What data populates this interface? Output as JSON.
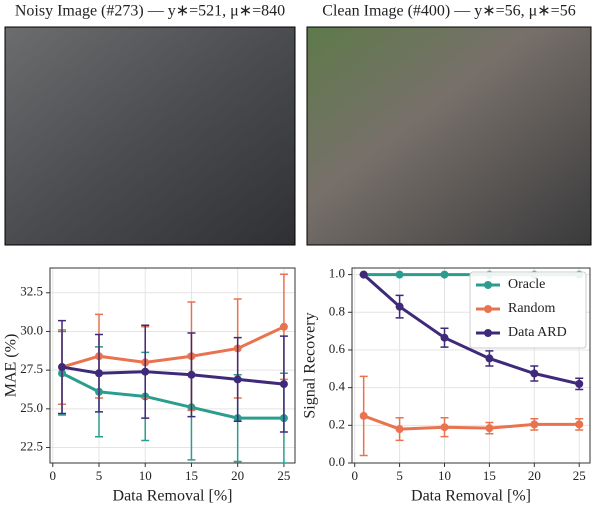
{
  "panels": [
    {
      "title": "Noisy Image (#273) — y∗=521, μ∗=840"
    },
    {
      "title": "Clean Image (#400) — y∗=56, μ∗=56"
    }
  ],
  "chart_data": [
    {
      "type": "line",
      "ylabel": "MAE (%)",
      "xlabel": "Data Removal [%]",
      "x": [
        1,
        5,
        10,
        15,
        20,
        25
      ],
      "xlim": [
        -0.3,
        26.2
      ],
      "xticks": [
        0,
        5,
        10,
        15,
        20,
        25
      ],
      "ylim": [
        21.5,
        34.1
      ],
      "yticks": [
        {
          "value": 22.5,
          "label": "22.5"
        },
        {
          "value": 25,
          "label": "25.0"
        },
        {
          "value": 27.5,
          "label": "27.5"
        },
        {
          "value": 30,
          "label": "30.0"
        },
        {
          "value": 32.5,
          "label": "32.5"
        }
      ],
      "grid": true,
      "series": [
        {
          "color": "#2a9d8f",
          "values": [
            27.3,
            26.1,
            25.8,
            25.1,
            24.4,
            24.4
          ],
          "errors": [
            2.7,
            2.9,
            2.85,
            3.4,
            2.8,
            2.9
          ]
        },
        {
          "color": "#e9734f",
          "values": [
            27.7,
            28.4,
            28.0,
            28.4,
            28.9,
            30.3
          ],
          "errors": [
            2.4,
            2.7,
            2.3,
            3.5,
            3.2,
            3.4
          ]
        },
        {
          "color": "#3f2a7a",
          "values": [
            27.7,
            27.3,
            27.4,
            27.2,
            26.9,
            26.6
          ],
          "errors": [
            3.0,
            2.5,
            3.0,
            2.7,
            2.7,
            3.1
          ]
        }
      ]
    },
    {
      "type": "line",
      "ylabel": "Signal Recovery",
      "xlabel": "Data Removal [%]",
      "x": [
        1,
        5,
        10,
        15,
        20,
        25
      ],
      "xlim": [
        -0.3,
        26.2
      ],
      "xticks": [
        0,
        5,
        10,
        15,
        20,
        25
      ],
      "ylim": [
        0,
        1.035
      ],
      "yticks": [
        {
          "value": 0,
          "label": "0.0"
        },
        {
          "value": 0.2,
          "label": "0.2"
        },
        {
          "value": 0.4,
          "label": "0.4"
        },
        {
          "value": 0.6,
          "label": "0.6"
        },
        {
          "value": 0.8,
          "label": "0.8"
        },
        {
          "value": 1,
          "label": "1.0"
        }
      ],
      "grid": true,
      "legend": "upper right",
      "series": [
        {
          "name": "Oracle",
          "color": "#2a9d8f",
          "values": [
            1,
            1,
            1,
            1,
            1,
            1
          ],
          "errors": [
            0,
            0,
            0,
            0,
            0,
            0
          ]
        },
        {
          "name": "Random",
          "color": "#e9734f",
          "values": [
            0.25,
            0.18,
            0.19,
            0.185,
            0.205,
            0.205
          ],
          "errors": [
            0.21,
            0.06,
            0.05,
            0.03,
            0.03,
            0.03
          ]
        },
        {
          "name": "Data ARD",
          "color": "#3f2a7a",
          "values": [
            1,
            0.83,
            0.665,
            0.555,
            0.475,
            0.42
          ],
          "errors": [
            0,
            0.06,
            0.05,
            0.04,
            0.04,
            0.03
          ]
        }
      ]
    }
  ]
}
